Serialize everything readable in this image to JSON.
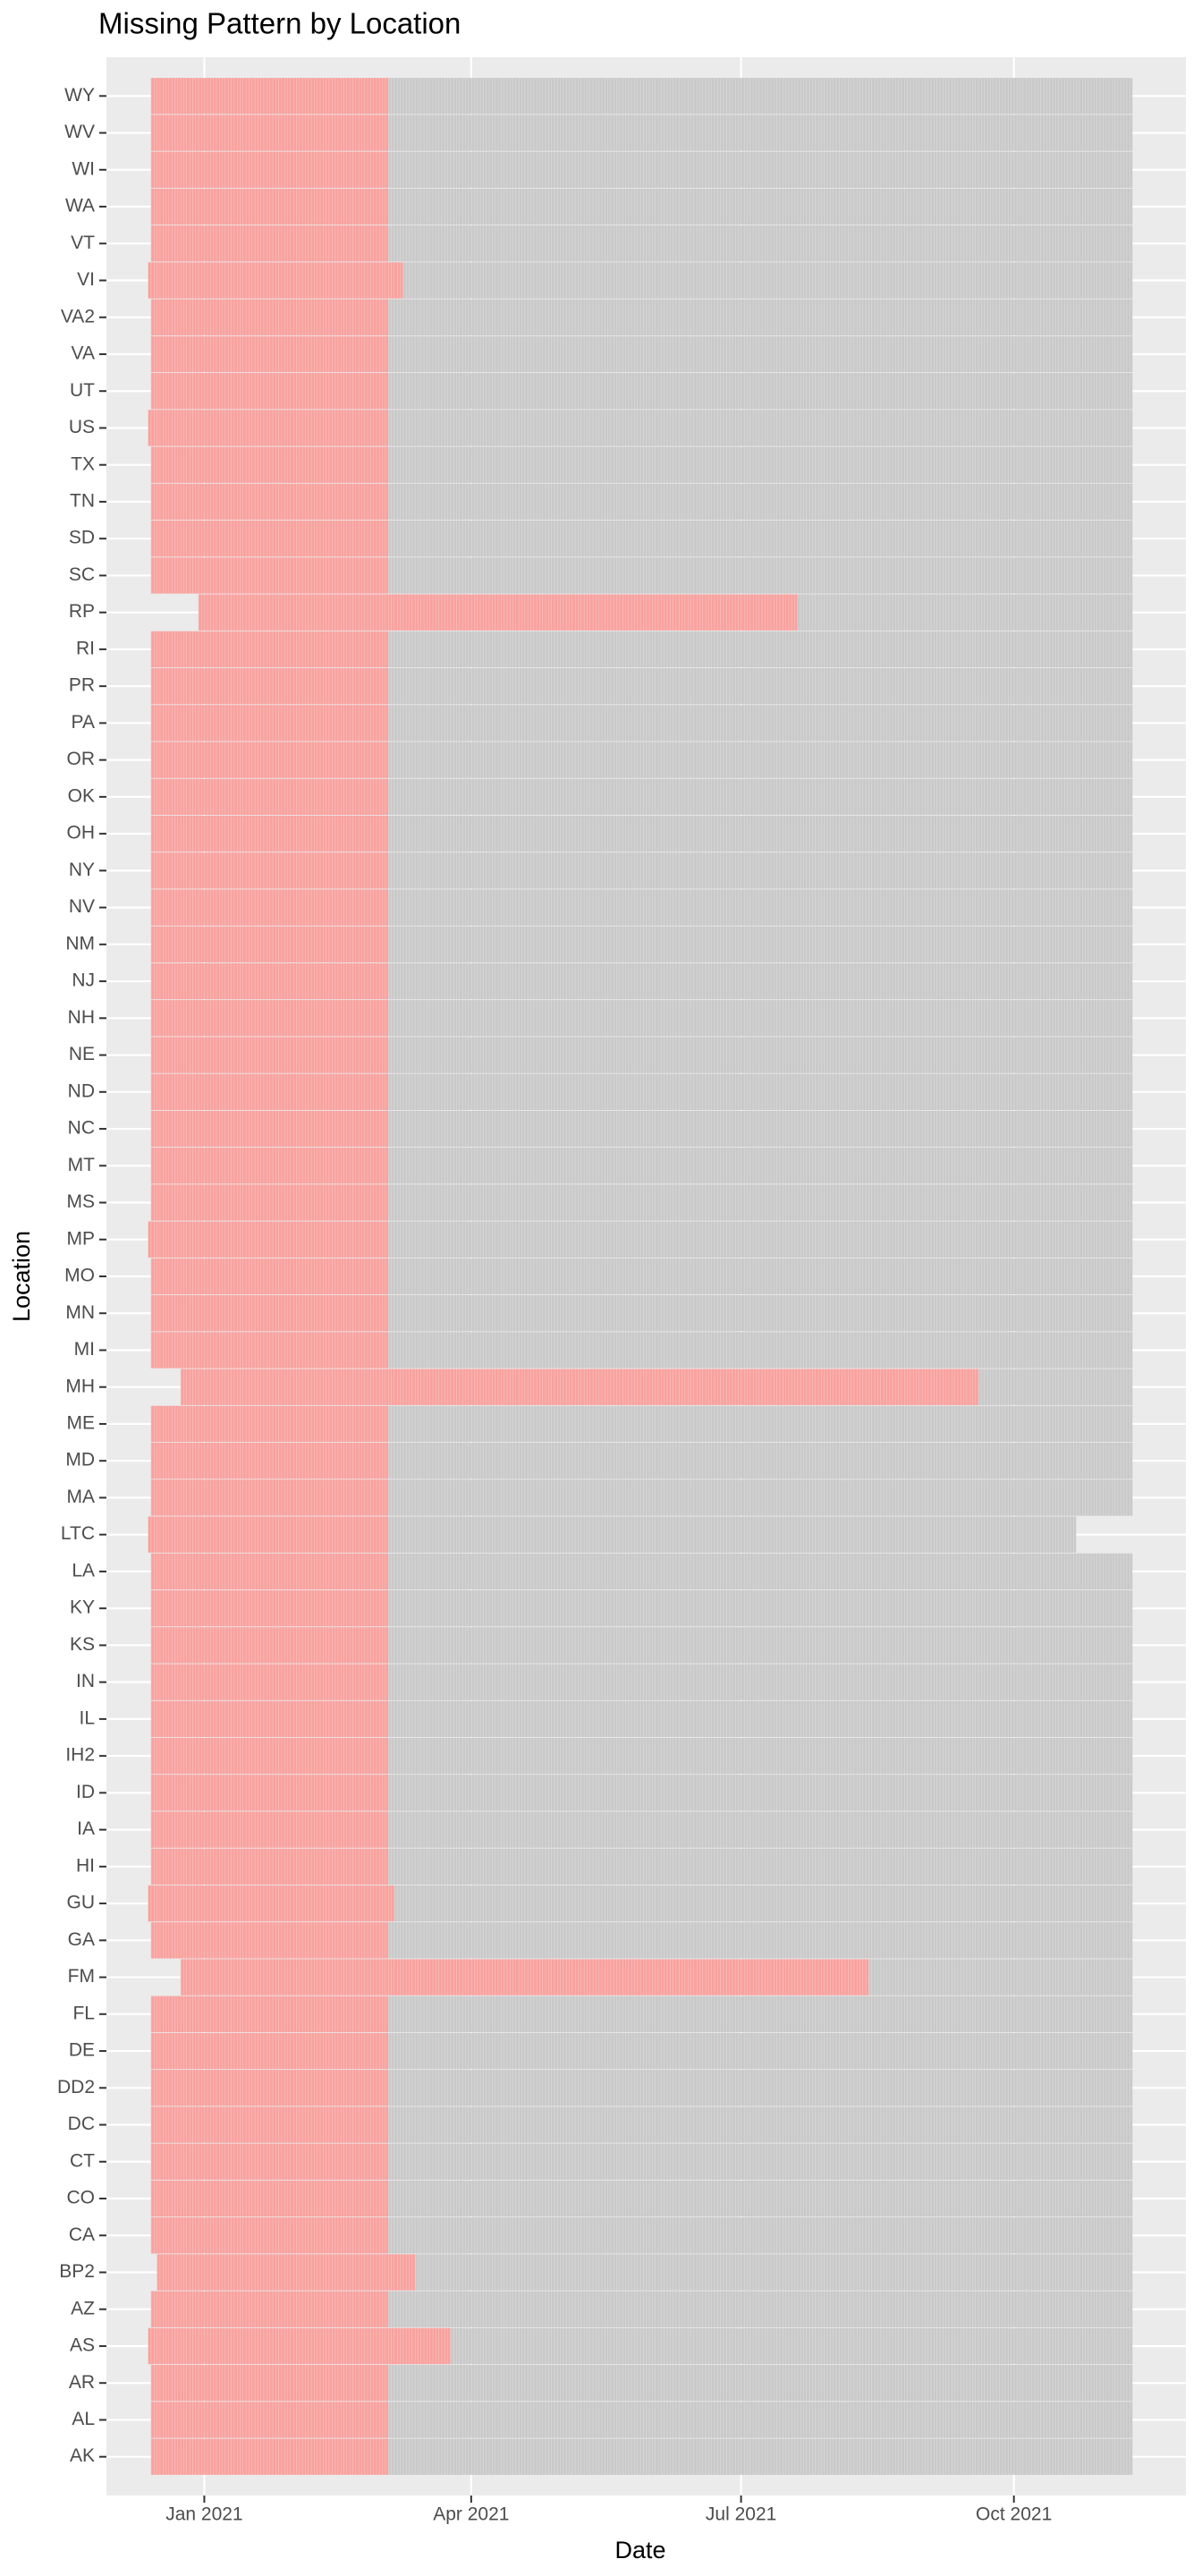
{
  "chart_data": {
    "type": "tile-range",
    "title": "Missing Pattern by Location",
    "x_label": "Date",
    "y_label": "Location",
    "missing_color": "#f8a19e",
    "observed_color": "#c9c9c9",
    "xlim": [
      "2020-11-29",
      "2021-11-28"
    ],
    "xticks": [
      {
        "value": "2021-01-01",
        "label": "Jan 2021"
      },
      {
        "value": "2021-04-01",
        "label": "Apr 2021"
      },
      {
        "value": "2021-07-01",
        "label": "Jul 2021"
      },
      {
        "value": "2021-10-01",
        "label": "Oct 2021"
      }
    ],
    "grid": true,
    "rows": [
      {
        "location": "AK",
        "missing_start": "2020-12-14",
        "missing_end": "2021-03-04",
        "observed_end": "2021-11-10"
      },
      {
        "location": "AL",
        "missing_start": "2020-12-14",
        "missing_end": "2021-03-04",
        "observed_end": "2021-11-10"
      },
      {
        "location": "AR",
        "missing_start": "2020-12-14",
        "missing_end": "2021-03-04",
        "observed_end": "2021-11-10"
      },
      {
        "location": "AS",
        "missing_start": "2020-12-13",
        "missing_end": "2021-03-25",
        "observed_end": "2021-11-10"
      },
      {
        "location": "AZ",
        "missing_start": "2020-12-14",
        "missing_end": "2021-03-04",
        "observed_end": "2021-11-10"
      },
      {
        "location": "BP2",
        "missing_start": "2020-12-16",
        "missing_end": "2021-03-13",
        "observed_end": "2021-11-10"
      },
      {
        "location": "CA",
        "missing_start": "2020-12-14",
        "missing_end": "2021-03-04",
        "observed_end": "2021-11-10"
      },
      {
        "location": "CO",
        "missing_start": "2020-12-14",
        "missing_end": "2021-03-04",
        "observed_end": "2021-11-10"
      },
      {
        "location": "CT",
        "missing_start": "2020-12-14",
        "missing_end": "2021-03-04",
        "observed_end": "2021-11-10"
      },
      {
        "location": "DC",
        "missing_start": "2020-12-14",
        "missing_end": "2021-03-04",
        "observed_end": "2021-11-10"
      },
      {
        "location": "DD2",
        "missing_start": "2020-12-14",
        "missing_end": "2021-03-04",
        "observed_end": "2021-11-10"
      },
      {
        "location": "DE",
        "missing_start": "2020-12-14",
        "missing_end": "2021-03-04",
        "observed_end": "2021-11-10"
      },
      {
        "location": "FL",
        "missing_start": "2020-12-14",
        "missing_end": "2021-03-04",
        "observed_end": "2021-11-10"
      },
      {
        "location": "FM",
        "missing_start": "2020-12-24",
        "missing_end": "2021-08-13",
        "observed_end": "2021-11-10"
      },
      {
        "location": "GA",
        "missing_start": "2020-12-14",
        "missing_end": "2021-03-04",
        "observed_end": "2021-11-10"
      },
      {
        "location": "GU",
        "missing_start": "2020-12-13",
        "missing_end": "2021-03-06",
        "observed_end": "2021-11-10"
      },
      {
        "location": "HI",
        "missing_start": "2020-12-14",
        "missing_end": "2021-03-04",
        "observed_end": "2021-11-10"
      },
      {
        "location": "IA",
        "missing_start": "2020-12-14",
        "missing_end": "2021-03-04",
        "observed_end": "2021-11-10"
      },
      {
        "location": "ID",
        "missing_start": "2020-12-14",
        "missing_end": "2021-03-04",
        "observed_end": "2021-11-10"
      },
      {
        "location": "IH2",
        "missing_start": "2020-12-14",
        "missing_end": "2021-03-04",
        "observed_end": "2021-11-10"
      },
      {
        "location": "IL",
        "missing_start": "2020-12-14",
        "missing_end": "2021-03-04",
        "observed_end": "2021-11-10"
      },
      {
        "location": "IN",
        "missing_start": "2020-12-14",
        "missing_end": "2021-03-04",
        "observed_end": "2021-11-10"
      },
      {
        "location": "KS",
        "missing_start": "2020-12-14",
        "missing_end": "2021-03-04",
        "observed_end": "2021-11-10"
      },
      {
        "location": "KY",
        "missing_start": "2020-12-14",
        "missing_end": "2021-03-04",
        "observed_end": "2021-11-10"
      },
      {
        "location": "LA",
        "missing_start": "2020-12-14",
        "missing_end": "2021-03-04",
        "observed_end": "2021-11-10"
      },
      {
        "location": "LTC",
        "missing_start": "2020-12-13",
        "missing_end": "2021-03-04",
        "observed_end": "2021-10-22"
      },
      {
        "location": "MA",
        "missing_start": "2020-12-14",
        "missing_end": "2021-03-04",
        "observed_end": "2021-11-10"
      },
      {
        "location": "MD",
        "missing_start": "2020-12-14",
        "missing_end": "2021-03-04",
        "observed_end": "2021-11-10"
      },
      {
        "location": "ME",
        "missing_start": "2020-12-14",
        "missing_end": "2021-03-04",
        "observed_end": "2021-11-10"
      },
      {
        "location": "MH",
        "missing_start": "2020-12-24",
        "missing_end": "2021-09-19",
        "observed_end": "2021-11-10"
      },
      {
        "location": "MI",
        "missing_start": "2020-12-14",
        "missing_end": "2021-03-04",
        "observed_end": "2021-11-10"
      },
      {
        "location": "MN",
        "missing_start": "2020-12-14",
        "missing_end": "2021-03-04",
        "observed_end": "2021-11-10"
      },
      {
        "location": "MO",
        "missing_start": "2020-12-14",
        "missing_end": "2021-03-04",
        "observed_end": "2021-11-10"
      },
      {
        "location": "MP",
        "missing_start": "2020-12-13",
        "missing_end": "2021-03-04",
        "observed_end": "2021-11-10"
      },
      {
        "location": "MS",
        "missing_start": "2020-12-14",
        "missing_end": "2021-03-04",
        "observed_end": "2021-11-10"
      },
      {
        "location": "MT",
        "missing_start": "2020-12-14",
        "missing_end": "2021-03-04",
        "observed_end": "2021-11-10"
      },
      {
        "location": "NC",
        "missing_start": "2020-12-14",
        "missing_end": "2021-03-04",
        "observed_end": "2021-11-10"
      },
      {
        "location": "ND",
        "missing_start": "2020-12-14",
        "missing_end": "2021-03-04",
        "observed_end": "2021-11-10"
      },
      {
        "location": "NE",
        "missing_start": "2020-12-14",
        "missing_end": "2021-03-04",
        "observed_end": "2021-11-10"
      },
      {
        "location": "NH",
        "missing_start": "2020-12-14",
        "missing_end": "2021-03-04",
        "observed_end": "2021-11-10"
      },
      {
        "location": "NJ",
        "missing_start": "2020-12-14",
        "missing_end": "2021-03-04",
        "observed_end": "2021-11-10"
      },
      {
        "location": "NM",
        "missing_start": "2020-12-14",
        "missing_end": "2021-03-04",
        "observed_end": "2021-11-10"
      },
      {
        "location": "NV",
        "missing_start": "2020-12-14",
        "missing_end": "2021-03-04",
        "observed_end": "2021-11-10"
      },
      {
        "location": "NY",
        "missing_start": "2020-12-14",
        "missing_end": "2021-03-04",
        "observed_end": "2021-11-10"
      },
      {
        "location": "OH",
        "missing_start": "2020-12-14",
        "missing_end": "2021-03-04",
        "observed_end": "2021-11-10"
      },
      {
        "location": "OK",
        "missing_start": "2020-12-14",
        "missing_end": "2021-03-04",
        "observed_end": "2021-11-10"
      },
      {
        "location": "OR",
        "missing_start": "2020-12-14",
        "missing_end": "2021-03-04",
        "observed_end": "2021-11-10"
      },
      {
        "location": "PA",
        "missing_start": "2020-12-14",
        "missing_end": "2021-03-04",
        "observed_end": "2021-11-10"
      },
      {
        "location": "PR",
        "missing_start": "2020-12-14",
        "missing_end": "2021-03-04",
        "observed_end": "2021-11-10"
      },
      {
        "location": "RI",
        "missing_start": "2020-12-14",
        "missing_end": "2021-03-04",
        "observed_end": "2021-11-10"
      },
      {
        "location": "RP",
        "missing_start": "2020-12-30",
        "missing_end": "2021-07-20",
        "observed_end": "2021-11-10"
      },
      {
        "location": "SC",
        "missing_start": "2020-12-14",
        "missing_end": "2021-03-04",
        "observed_end": "2021-11-10"
      },
      {
        "location": "SD",
        "missing_start": "2020-12-14",
        "missing_end": "2021-03-04",
        "observed_end": "2021-11-10"
      },
      {
        "location": "TN",
        "missing_start": "2020-12-14",
        "missing_end": "2021-03-04",
        "observed_end": "2021-11-10"
      },
      {
        "location": "TX",
        "missing_start": "2020-12-14",
        "missing_end": "2021-03-04",
        "observed_end": "2021-11-10"
      },
      {
        "location": "US",
        "missing_start": "2020-12-13",
        "missing_end": "2021-03-04",
        "observed_end": "2021-11-10"
      },
      {
        "location": "UT",
        "missing_start": "2020-12-14",
        "missing_end": "2021-03-04",
        "observed_end": "2021-11-10"
      },
      {
        "location": "VA",
        "missing_start": "2020-12-14",
        "missing_end": "2021-03-04",
        "observed_end": "2021-11-10"
      },
      {
        "location": "VA2",
        "missing_start": "2020-12-14",
        "missing_end": "2021-03-04",
        "observed_end": "2021-11-10"
      },
      {
        "location": "VI",
        "missing_start": "2020-12-13",
        "missing_end": "2021-03-09",
        "observed_end": "2021-11-10"
      },
      {
        "location": "VT",
        "missing_start": "2020-12-14",
        "missing_end": "2021-03-04",
        "observed_end": "2021-11-10"
      },
      {
        "location": "WA",
        "missing_start": "2020-12-14",
        "missing_end": "2021-03-04",
        "observed_end": "2021-11-10"
      },
      {
        "location": "WI",
        "missing_start": "2020-12-14",
        "missing_end": "2021-03-04",
        "observed_end": "2021-11-10"
      },
      {
        "location": "WV",
        "missing_start": "2020-12-14",
        "missing_end": "2021-03-04",
        "observed_end": "2021-11-10"
      },
      {
        "location": "WY",
        "missing_start": "2020-12-14",
        "missing_end": "2021-03-04",
        "observed_end": "2021-11-10"
      }
    ]
  }
}
